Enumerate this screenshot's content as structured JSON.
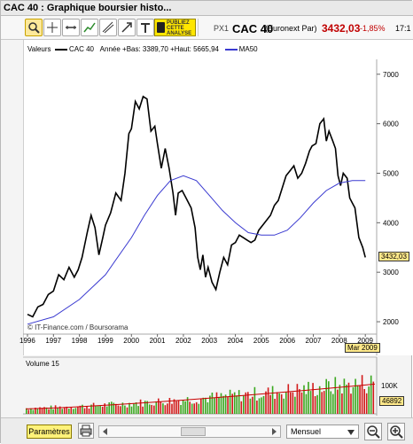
{
  "window": {
    "title": "CAC 40 : Graphique boursier histo..."
  },
  "toolbar": {
    "promo": [
      "PUBLIEZ",
      "CETTE",
      "ANALYSE"
    ],
    "code": "PX1",
    "ticker": "CAC 40",
    "exchange": "(Euronext Par)",
    "price": "3432,03",
    "change": "-1,85%",
    "time": "17:1"
  },
  "legend": {
    "title": "Valeurs",
    "main_series": "CAC 40",
    "range": "Année +Bas: 3389,70 +Haut: 5665,94",
    "ma_series": "MA50"
  },
  "colors": {
    "price_line": "#000000",
    "ma_line": "#3a3ad0",
    "vol_up": "#3aa81e",
    "vol_down": "#d21a1a",
    "badge": "#ffe98a"
  },
  "price_badge": "3432,03",
  "date_badge": "Mar 2009",
  "volume": {
    "label": "Volume 15",
    "tick": "100K",
    "value": "46892"
  },
  "credit": "© IT-Finance.com / Boursorama",
  "footer": {
    "params": "Paramètres",
    "period": "Mensuel"
  },
  "chart_data": {
    "type": "line",
    "title": "",
    "y_ticks": [
      2000,
      3000,
      4000,
      5000,
      6000,
      7000
    ],
    "x_ticks": [
      "1996",
      "1997",
      "1998",
      "1999",
      "2000",
      "2001",
      "2002",
      "2003",
      "2004",
      "2005",
      "2006",
      "2007",
      "2008",
      "2009"
    ],
    "xlim": [
      1996,
      2009.3
    ],
    "ylim": [
      1750,
      7300
    ],
    "series": [
      {
        "name": "CAC 40",
        "values": [
          [
            1996.0,
            2150
          ],
          [
            1996.2,
            2100
          ],
          [
            1996.4,
            2300
          ],
          [
            1996.6,
            2350
          ],
          [
            1996.8,
            2550
          ],
          [
            1997.0,
            2620
          ],
          [
            1997.2,
            2950
          ],
          [
            1997.4,
            2850
          ],
          [
            1997.6,
            3100
          ],
          [
            1997.8,
            2900
          ],
          [
            1997.95,
            3050
          ],
          [
            1998.1,
            3300
          ],
          [
            1998.3,
            3800
          ],
          [
            1998.45,
            4150
          ],
          [
            1998.6,
            3900
          ],
          [
            1998.75,
            3350
          ],
          [
            1998.9,
            3700
          ],
          [
            1999.0,
            3950
          ],
          [
            1999.2,
            4200
          ],
          [
            1999.4,
            4600
          ],
          [
            1999.6,
            4450
          ],
          [
            1999.75,
            5000
          ],
          [
            1999.9,
            5800
          ],
          [
            2000.0,
            5900
          ],
          [
            2000.15,
            6450
          ],
          [
            2000.3,
            6300
          ],
          [
            2000.45,
            6550
          ],
          [
            2000.6,
            6500
          ],
          [
            2000.75,
            5850
          ],
          [
            2000.9,
            5950
          ],
          [
            2001.0,
            5600
          ],
          [
            2001.15,
            5100
          ],
          [
            2001.3,
            5500
          ],
          [
            2001.45,
            5100
          ],
          [
            2001.6,
            4600
          ],
          [
            2001.7,
            4150
          ],
          [
            2001.8,
            4600
          ],
          [
            2001.95,
            4650
          ],
          [
            2002.1,
            4500
          ],
          [
            2002.3,
            4300
          ],
          [
            2002.45,
            3900
          ],
          [
            2002.55,
            3300
          ],
          [
            2002.65,
            3050
          ],
          [
            2002.75,
            3350
          ],
          [
            2002.85,
            2900
          ],
          [
            2002.95,
            3100
          ],
          [
            2003.1,
            2800
          ],
          [
            2003.25,
            2650
          ],
          [
            2003.4,
            3000
          ],
          [
            2003.55,
            3300
          ],
          [
            2003.7,
            3150
          ],
          [
            2003.85,
            3550
          ],
          [
            2004.0,
            3600
          ],
          [
            2004.15,
            3750
          ],
          [
            2004.3,
            3700
          ],
          [
            2004.45,
            3650
          ],
          [
            2004.6,
            3600
          ],
          [
            2004.75,
            3650
          ],
          [
            2004.9,
            3850
          ],
          [
            2005.05,
            3950
          ],
          [
            2005.2,
            4050
          ],
          [
            2005.35,
            4150
          ],
          [
            2005.5,
            4350
          ],
          [
            2005.65,
            4450
          ],
          [
            2005.8,
            4700
          ],
          [
            2005.95,
            4950
          ],
          [
            2006.1,
            5050
          ],
          [
            2006.25,
            5150
          ],
          [
            2006.4,
            4900
          ],
          [
            2006.55,
            5000
          ],
          [
            2006.7,
            5200
          ],
          [
            2006.85,
            5450
          ],
          [
            2006.95,
            5550
          ],
          [
            2007.1,
            5600
          ],
          [
            2007.25,
            6000
          ],
          [
            2007.4,
            6100
          ],
          [
            2007.5,
            5650
          ],
          [
            2007.6,
            5850
          ],
          [
            2007.75,
            5650
          ],
          [
            2007.85,
            5500
          ],
          [
            2007.95,
            4950
          ],
          [
            2008.05,
            4750
          ],
          [
            2008.15,
            5000
          ],
          [
            2008.3,
            4900
          ],
          [
            2008.4,
            4500
          ],
          [
            2008.5,
            4400
          ],
          [
            2008.6,
            4300
          ],
          [
            2008.75,
            3700
          ],
          [
            2008.9,
            3500
          ],
          [
            2009.0,
            3300
          ]
        ]
      },
      {
        "name": "MA50",
        "values": [
          [
            1996.0,
            1950
          ],
          [
            1997.0,
            2100
          ],
          [
            1998.0,
            2450
          ],
          [
            1999.0,
            2950
          ],
          [
            2000.0,
            3700
          ],
          [
            2000.5,
            4150
          ],
          [
            2001.0,
            4550
          ],
          [
            2001.5,
            4850
          ],
          [
            2002.0,
            4950
          ],
          [
            2002.5,
            4850
          ],
          [
            2003.0,
            4550
          ],
          [
            2003.5,
            4250
          ],
          [
            2004.0,
            4000
          ],
          [
            2004.5,
            3800
          ],
          [
            2005.0,
            3750
          ],
          [
            2005.5,
            3750
          ],
          [
            2006.0,
            3850
          ],
          [
            2006.5,
            4100
          ],
          [
            2007.0,
            4400
          ],
          [
            2007.5,
            4650
          ],
          [
            2008.0,
            4800
          ],
          [
            2008.5,
            4850
          ],
          [
            2009.0,
            4850
          ]
        ]
      }
    ],
    "volume_series": {
      "unit": "shares",
      "tick_values": [
        100000
      ]
    },
    "grid": false,
    "legend_position": "top-left"
  }
}
